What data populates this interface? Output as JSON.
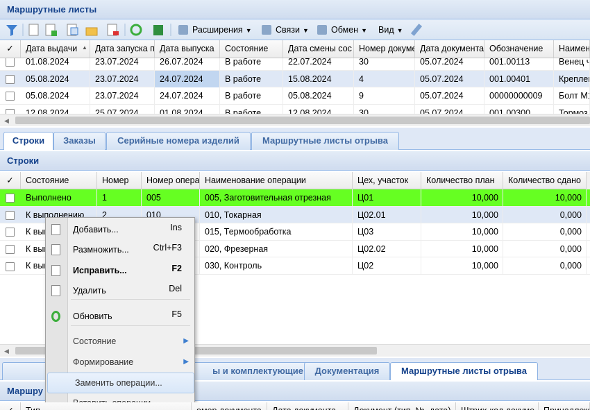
{
  "main_panel": {
    "title": "Маршрутные листы",
    "toolbar": [
      "Расширения",
      "Связи",
      "Обмен",
      "Вид"
    ],
    "grid": {
      "columns": [
        "✓",
        "Дата выдачи",
        "Дата запуска п",
        "Дата выпуска",
        "Состояние",
        "Дата смены сос",
        "Номер докуме",
        "Дата документа",
        "Обозначение",
        "Наимен"
      ],
      "rows": [
        [
          "01.08.2024",
          "23.07.2024",
          "26.07.2024",
          "В работе",
          "22.07.2024",
          "30",
          "05.07.2024",
          "001.00113",
          "Венец ч"
        ],
        [
          "05.08.2024",
          "23.07.2024",
          "24.07.2024",
          "В работе",
          "15.08.2024",
          "4",
          "05.07.2024",
          "001.00401",
          "Креплен"
        ],
        [
          "05.08.2024",
          "23.07.2024",
          "24.07.2024",
          "В работе",
          "05.08.2024",
          "9",
          "05.07.2024",
          "00000000009",
          "Болт М1"
        ],
        [
          "12.08.2024",
          "25.07.2024",
          "01.08.2024",
          "В работе",
          "12.08.2024",
          "30",
          "05.07.2024",
          "001.00300",
          "Тормоз"
        ]
      ]
    }
  },
  "tabs": [
    "Строки",
    "Заказы",
    "Серийные номера изделий",
    "Маршрутные листы отрыва"
  ],
  "lines_panel": {
    "title": "Строки",
    "grid": {
      "columns": [
        "✓",
        "Состояние",
        "Номер",
        "Номер опера",
        "Наименование операции",
        "Цех, участок",
        "Количество план",
        "Количество сдано"
      ],
      "rows": [
        [
          "Выполнено",
          "1",
          "005",
          "005, Заготовительная отрезная",
          "Ц01",
          "10,000",
          "10,000"
        ],
        [
          "К выполнению",
          "2",
          "010",
          "010, Токарная",
          "Ц02.01",
          "10,000",
          "0,000"
        ],
        [
          "К выполнению",
          null,
          null,
          "015, Термообработка",
          "Ц03",
          "10,000",
          "0,000"
        ],
        [
          "К выполнению",
          null,
          null,
          "020, Фрезерная",
          "Ц02.02",
          "10,000",
          "0,000"
        ],
        [
          "К выполнению",
          null,
          null,
          "030, Контроль",
          "Ц02",
          "10,000",
          "0,000"
        ]
      ]
    }
  },
  "bottom_tabs": [
    "Дополн",
    "ы и комплектующие",
    "Документация",
    "Маршрутные листы отрыва"
  ],
  "bottom_panel": {
    "title": "Маршру",
    "columns": [
      "✓",
      "Тип",
      "омер документа",
      "Дата документа",
      "Документ (тип, №, дата)",
      "Штрих-код докуме",
      "Принадлеж"
    ]
  },
  "context_menu": {
    "items": [
      {
        "label": "Добавить...",
        "shortcut": "Ins"
      },
      {
        "label": "Размножить...",
        "shortcut": "Ctrl+F3"
      },
      {
        "label": "Исправить...",
        "shortcut": "F2"
      },
      {
        "label": "Удалить",
        "shortcut": "Del"
      },
      {
        "label": "Обновить",
        "shortcut": "F5"
      },
      {
        "label": "Состояние"
      },
      {
        "label": "Формирование"
      },
      {
        "label": "Заменить операции..."
      },
      {
        "label": "Вставить операции..."
      }
    ]
  }
}
